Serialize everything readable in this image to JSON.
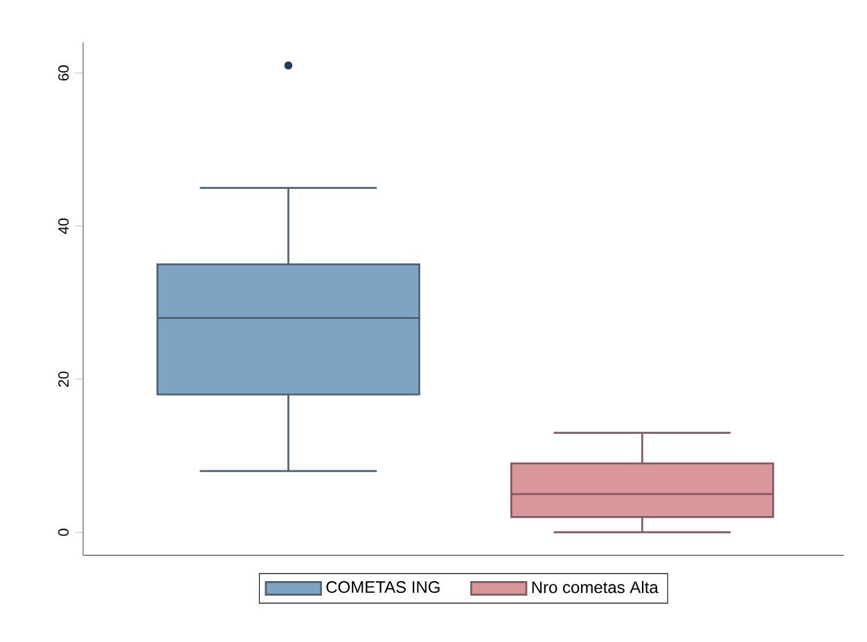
{
  "chart_data": {
    "type": "box",
    "categories": [
      null,
      null
    ],
    "series": [
      {
        "name": "COMETAS ING",
        "color": "#7fa3c2",
        "boxes": [
          {
            "low": 8,
            "q1": 18,
            "median": 28,
            "q3": 35,
            "high": 45,
            "outliers": [
              61
            ]
          },
          null
        ]
      },
      {
        "name": "Nro cometas Alta",
        "color": "#d9979c",
        "boxes": [
          null,
          {
            "low": 0,
            "q1": 2,
            "median": 5,
            "q3": 9,
            "high": 13
          }
        ]
      }
    ],
    "ylim": [
      -3,
      64
    ],
    "yticks": [
      0,
      20,
      40,
      60
    ],
    "grid": false,
    "legend": "bottom"
  }
}
